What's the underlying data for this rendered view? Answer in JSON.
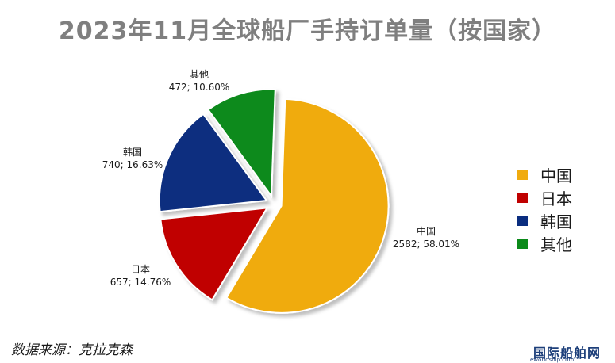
{
  "chart_data": {
    "type": "pie",
    "title": "2023年11月全球船厂手持订单量（按国家）",
    "slices": [
      {
        "label": "中国",
        "value": 2582,
        "percent": "58.01%",
        "color": "#f0ab0f"
      },
      {
        "label": "日本",
        "value": 657,
        "percent": "14.76%",
        "color": "#c00000"
      },
      {
        "label": "韩国",
        "value": 740,
        "percent": "16.63%",
        "color": "#0a2d7f"
      },
      {
        "label": "其他",
        "value": 472,
        "percent": "10.60%",
        "color": "#0b8a1a"
      }
    ],
    "legend_position": "right",
    "exploded": true
  },
  "source_note": "数据来源：克拉克森",
  "watermark": {
    "main": "国际船舶网",
    "url": "eworldship.com"
  }
}
